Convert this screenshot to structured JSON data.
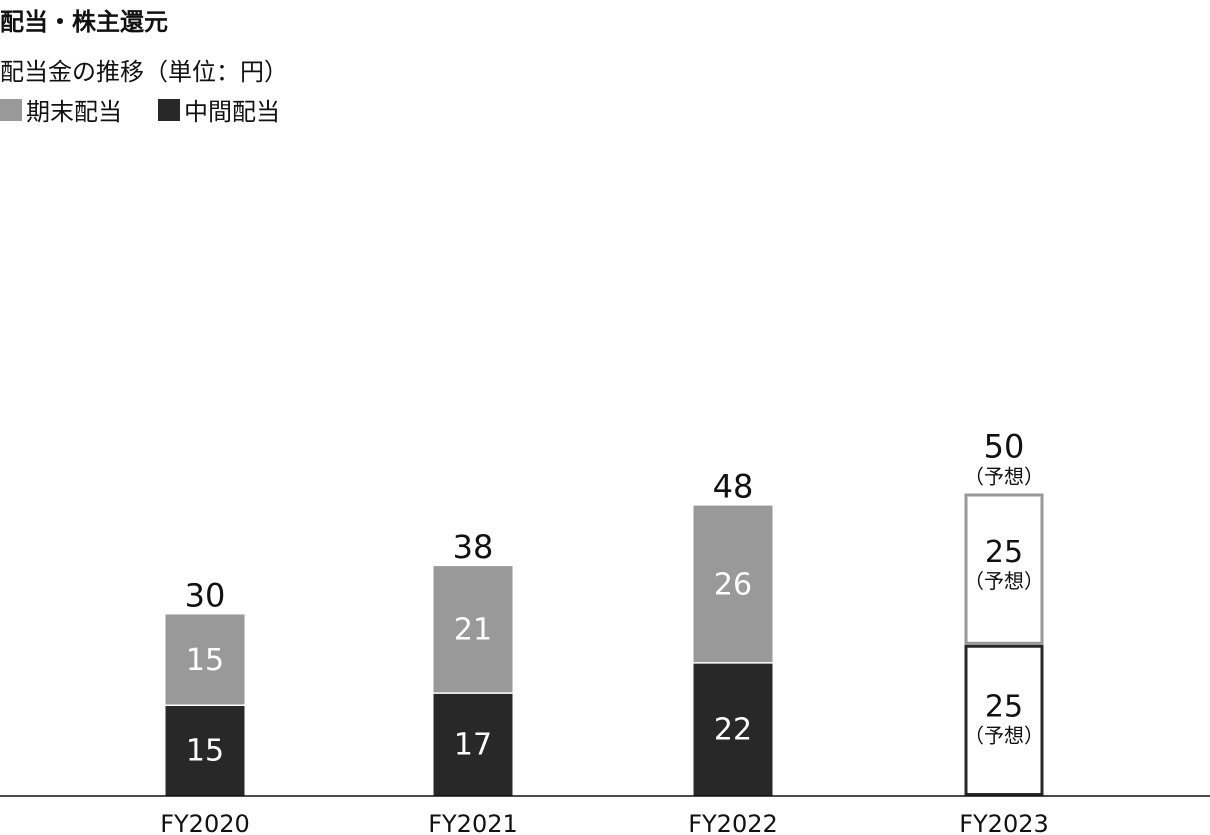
{
  "page": {
    "title": "配当・株主還元",
    "subtitle": "配当金の推移（単位：円）"
  },
  "legend": [
    {
      "label": "期末配当",
      "color": "#999999"
    },
    {
      "label": "中間配当",
      "color": "#282828"
    }
  ],
  "chart_data": {
    "type": "bar",
    "stacked": true,
    "categories": [
      "FY2020",
      "FY2021",
      "FY2022",
      "FY2023"
    ],
    "series": [
      {
        "name": "中間配当",
        "values": [
          15,
          17,
          22,
          25
        ],
        "color": "#282828"
      },
      {
        "name": "期末配当",
        "values": [
          15,
          21,
          26,
          25
        ],
        "color": "#999999"
      }
    ],
    "totals": [
      30,
      38,
      48,
      50
    ],
    "forecast": [
      false,
      false,
      false,
      true
    ],
    "forecast_label": "（予想）",
    "ylim": [
      0,
      50
    ],
    "grid": false,
    "legend_position": "top-left"
  }
}
